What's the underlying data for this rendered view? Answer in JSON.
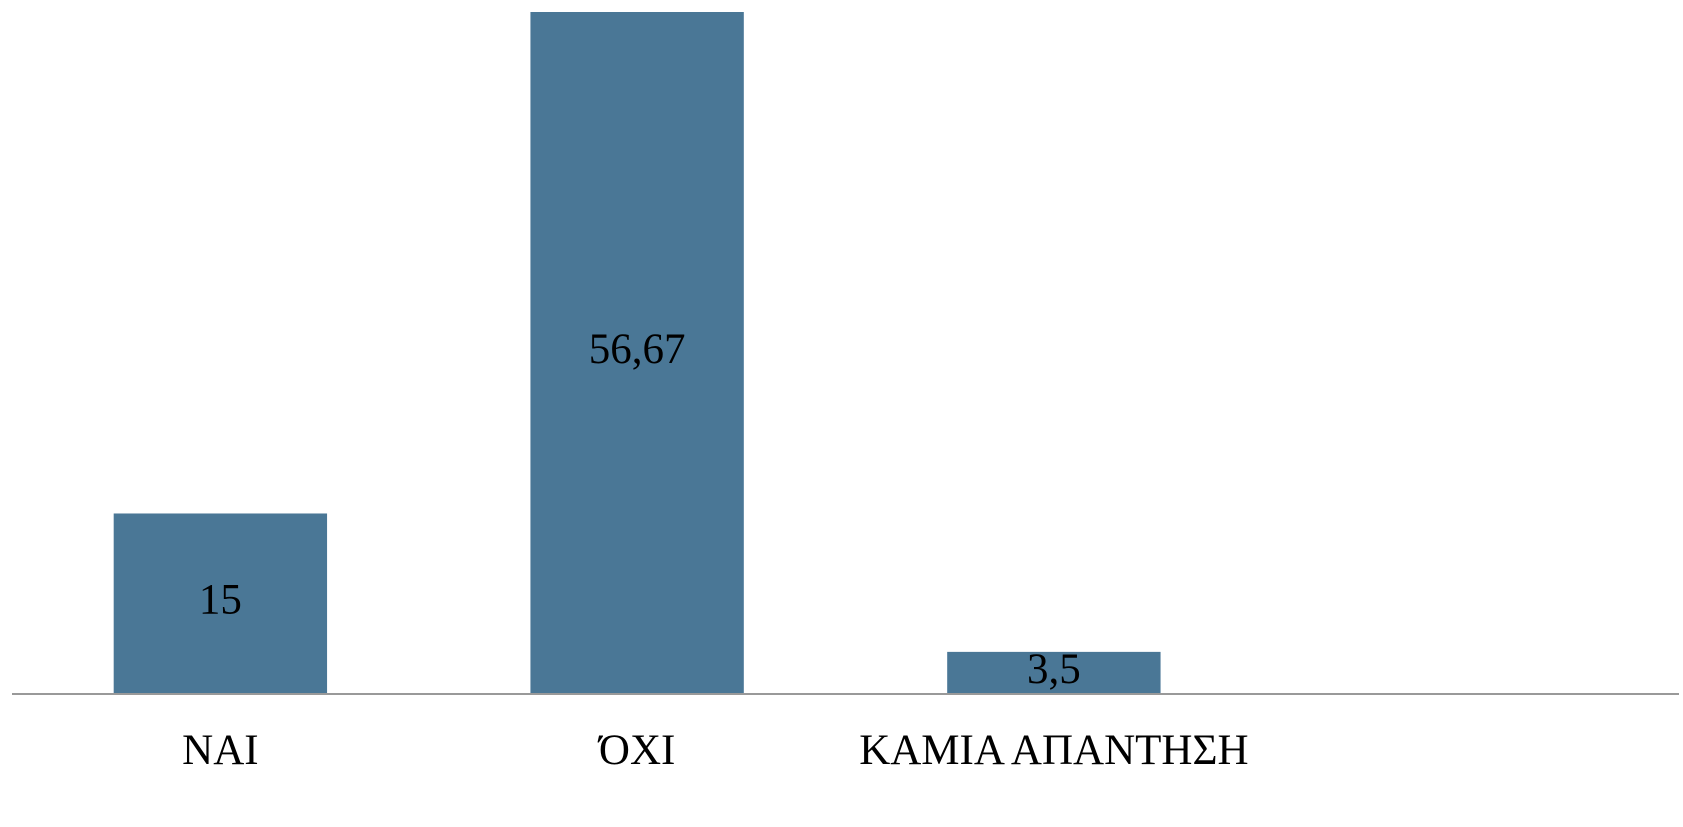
{
  "chart_data": {
    "type": "bar",
    "categories": [
      "ΝΑΙ",
      "ΌΧΙ",
      "ΚΑΜΙΑ ΑΠΑΝΤΗΣΗ",
      null
    ],
    "values": [
      15,
      56.67,
      3.5,
      null
    ],
    "value_labels": [
      "15",
      "56,67",
      "3,5",
      null
    ],
    "color": "#4a7796"
  }
}
